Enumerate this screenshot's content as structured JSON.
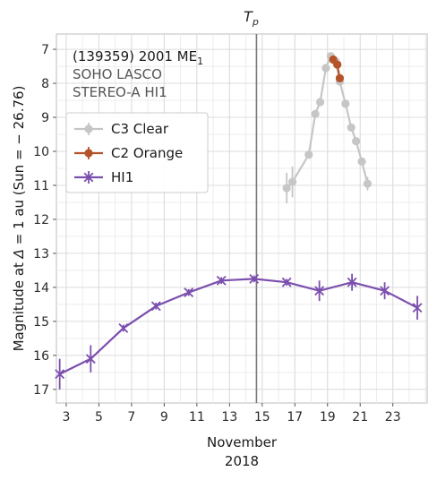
{
  "chart_data": {
    "type": "line",
    "xlabel": "November",
    "xlabel2": "2018",
    "ylabel_prefix": "Magnitude at ",
    "ylabel_delta": "Δ",
    "ylabel_suffix": " = 1 au (Sun = − 26.76)",
    "xlim": [
      2.4,
      25.1
    ],
    "ylim": [
      17.4,
      6.55
    ],
    "y_inverted": true,
    "grid": true,
    "xticks": [
      3,
      5,
      7,
      9,
      11,
      13,
      15,
      17,
      19,
      21,
      23
    ],
    "yticks": [
      7,
      8,
      9,
      10,
      11,
      12,
      13,
      14,
      15,
      16,
      17
    ],
    "perihelion": {
      "x": 14.65,
      "label_main": "T",
      "label_sub": "p"
    },
    "annotation": {
      "line1_main": "(139359) 2001 ME",
      "line1_sub": "1",
      "line2": "SOHO LASCO",
      "line3": "STEREO-A HI1"
    },
    "legend_position": "left",
    "series": [
      {
        "name": "C3 Clear",
        "color": "#c6c6c6",
        "marker": "circle",
        "points": [
          {
            "x": 16.5,
            "y": 11.08,
            "err": 0.45
          },
          {
            "x": 16.85,
            "y": 10.9,
            "err": 0.45
          },
          {
            "x": 17.85,
            "y": 10.1,
            "err": 0.1
          },
          {
            "x": 18.25,
            "y": 8.9,
            "err": 0.1
          },
          {
            "x": 18.55,
            "y": 8.55,
            "err": 0.1
          },
          {
            "x": 18.9,
            "y": 7.55,
            "err": 0.12
          },
          {
            "x": 19.2,
            "y": 7.2,
            "err": 0.1
          },
          {
            "x": 19.5,
            "y": 7.35,
            "err": 0.1
          },
          {
            "x": 19.75,
            "y": 7.95,
            "err": 0.1
          },
          {
            "x": 20.1,
            "y": 8.6,
            "err": 0.1
          },
          {
            "x": 20.45,
            "y": 9.3,
            "err": 0.1
          },
          {
            "x": 20.75,
            "y": 9.7,
            "err": 0.1
          },
          {
            "x": 21.1,
            "y": 10.3,
            "err": 0.1
          },
          {
            "x": 21.45,
            "y": 10.95,
            "err": 0.2
          }
        ]
      },
      {
        "name": "C2 Orange",
        "color": "#b4532a",
        "marker": "circle",
        "points": [
          {
            "x": 19.35,
            "y": 7.3,
            "err": 0.1
          },
          {
            "x": 19.6,
            "y": 7.45,
            "err": 0.1
          },
          {
            "x": 19.75,
            "y": 7.85,
            "err": 0.1
          }
        ]
      },
      {
        "name": "HI1",
        "color": "#7b4fae",
        "marker": "x",
        "points": [
          {
            "x": 2.6,
            "y": 16.55,
            "err": 0.45
          },
          {
            "x": 4.5,
            "y": 16.1,
            "err": 0.4
          },
          {
            "x": 6.5,
            "y": 15.2,
            "err": 0.1
          },
          {
            "x": 8.5,
            "y": 14.55,
            "err": 0.1
          },
          {
            "x": 10.5,
            "y": 14.15,
            "err": 0.1
          },
          {
            "x": 12.5,
            "y": 13.8,
            "err": 0.1
          },
          {
            "x": 14.5,
            "y": 13.75,
            "err": 0.1
          },
          {
            "x": 16.5,
            "y": 13.85,
            "err": 0.1
          },
          {
            "x": 18.5,
            "y": 14.1,
            "err": 0.3
          },
          {
            "x": 20.5,
            "y": 13.85,
            "err": 0.25
          },
          {
            "x": 22.5,
            "y": 14.1,
            "err": 0.25
          },
          {
            "x": 24.5,
            "y": 14.6,
            "err": 0.35
          }
        ]
      }
    ]
  }
}
